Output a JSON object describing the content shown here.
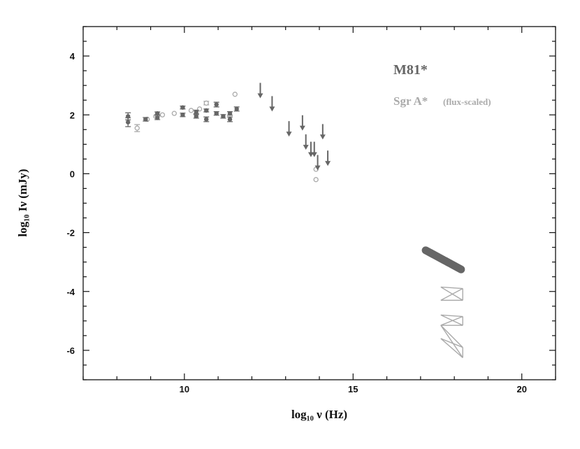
{
  "chart_data": {
    "type": "scatter",
    "title": "",
    "xlabel": "log₁₀ ν (Hz)",
    "ylabel": "log₁₀ Iν (mJy)",
    "xlim": [
      7,
      21
    ],
    "ylim": [
      -7,
      5
    ],
    "xticks": [
      10,
      15,
      20
    ],
    "yticks": [
      -6,
      -4,
      -2,
      0,
      2,
      4
    ],
    "legend": [
      {
        "label": "M81*",
        "color": "#666666"
      },
      {
        "label": "Sgr A*",
        "suffix": "(flux-scaled)",
        "color": "#aaaaaa"
      }
    ],
    "series": [
      {
        "name": "M81*",
        "color": "#666666",
        "points": [
          {
            "x": 8.33,
            "y": 1.95,
            "err": 0.12
          },
          {
            "x": 8.33,
            "y": 1.75,
            "err": 0.15
          },
          {
            "x": 8.85,
            "y": 1.85,
            "err": 0.06
          },
          {
            "x": 9.2,
            "y": 2.05,
            "err": 0.05
          },
          {
            "x": 9.2,
            "y": 1.9,
            "err": 0.06
          },
          {
            "x": 9.95,
            "y": 2.25,
            "err": 0.05
          },
          {
            "x": 9.95,
            "y": 2.0,
            "err": 0.06
          },
          {
            "x": 10.35,
            "y": 2.1,
            "err": 0.06
          },
          {
            "x": 10.35,
            "y": 1.95,
            "err": 0.06
          },
          {
            "x": 10.65,
            "y": 2.15,
            "err": 0.05
          },
          {
            "x": 10.65,
            "y": 1.85,
            "err": 0.08
          },
          {
            "x": 10.95,
            "y": 2.35,
            "err": 0.08
          },
          {
            "x": 10.95,
            "y": 2.05,
            "err": 0.06
          },
          {
            "x": 11.15,
            "y": 1.95,
            "err": 0.06
          },
          {
            "x": 11.35,
            "y": 2.05,
            "err": 0.06
          },
          {
            "x": 11.35,
            "y": 1.85,
            "err": 0.08
          },
          {
            "x": 11.55,
            "y": 2.2,
            "err": 0.07
          }
        ],
        "upper_limits": [
          {
            "x": 12.25,
            "y": 2.85
          },
          {
            "x": 12.6,
            "y": 2.4
          },
          {
            "x": 13.1,
            "y": 1.55
          },
          {
            "x": 13.5,
            "y": 1.75
          },
          {
            "x": 13.6,
            "y": 1.1
          },
          {
            "x": 13.75,
            "y": 0.85
          },
          {
            "x": 13.85,
            "y": 0.85
          },
          {
            "x": 13.95,
            "y": 0.4
          },
          {
            "x": 14.1,
            "y": 1.45
          },
          {
            "x": 14.25,
            "y": 0.55
          }
        ],
        "xray_band": {
          "x": [
            17.15,
            18.2
          ],
          "y": [
            -2.6,
            -3.25
          ]
        }
      },
      {
        "name": "Sgr A* (flux-scaled)",
        "color": "#aaaaaa",
        "points": [
          {
            "x": 8.6,
            "y": 1.55,
            "err": 0.12
          },
          {
            "x": 8.9,
            "y": 1.85
          },
          {
            "x": 9.15,
            "y": 1.95
          },
          {
            "x": 9.35,
            "y": 2.0
          },
          {
            "x": 9.7,
            "y": 2.05
          },
          {
            "x": 10.2,
            "y": 2.15
          },
          {
            "x": 10.45,
            "y": 2.2
          },
          {
            "x": 10.65,
            "y": 2.4,
            "err": 0.06
          },
          {
            "x": 11.5,
            "y": 2.7
          },
          {
            "x": 13.9,
            "y": 0.15
          },
          {
            "x": 13.9,
            "y": -0.2
          }
        ],
        "bowties": [
          {
            "x": [
              17.6,
              18.25
            ],
            "y_left": [
              -3.85,
              -4.3
            ],
            "y_right": [
              -4.3,
              -3.9
            ]
          },
          {
            "x": [
              17.6,
              18.25
            ],
            "y_left": [
              -4.8,
              -5.15
            ],
            "y_right": [
              -5.15,
              -4.85
            ]
          },
          {
            "x": [
              17.6,
              18.25
            ],
            "y_left": [
              -5.15,
              -5.6
            ],
            "y_right": [
              -6.25,
              -5.9
            ]
          }
        ]
      }
    ]
  }
}
